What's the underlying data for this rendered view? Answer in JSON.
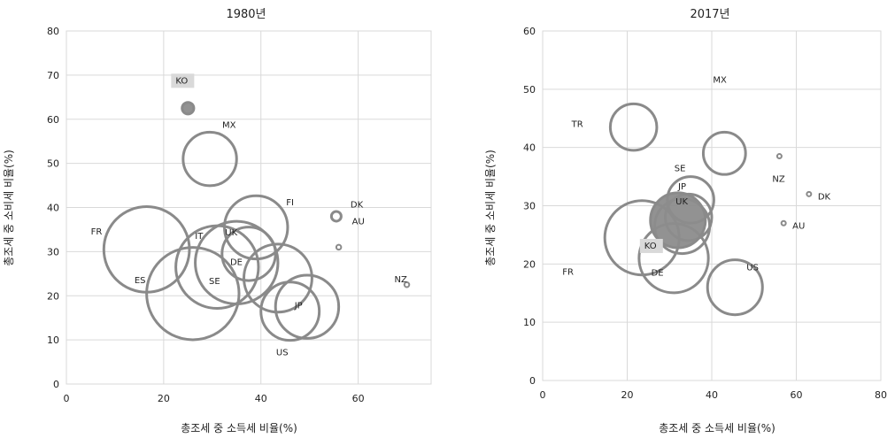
{
  "chart_data": [
    {
      "type": "scatter",
      "title": "1980년",
      "xlabel": "총조세 중 소득세 비율(%)",
      "ylabel": "총조세 중 소비세 비율(%)",
      "xlim": [
        0,
        75
      ],
      "ylim": [
        0,
        80
      ],
      "xticks": [
        0,
        20,
        40,
        60
      ],
      "yticks": [
        0,
        10,
        20,
        30,
        40,
        50,
        60,
        70,
        80
      ],
      "grid": true,
      "note": "bubble chart; circle size varies by country",
      "points": [
        {
          "label": "KO",
          "x": 25,
          "y": 62.5,
          "size": 1.2,
          "filled": true,
          "highlight": true
        },
        {
          "label": "MX",
          "x": 29.5,
          "y": 51,
          "size": 5.5
        },
        {
          "label": "FI",
          "x": 39,
          "y": 35.5,
          "size": 6.5
        },
        {
          "label": "UK",
          "x": 35,
          "y": 27.5,
          "size": 8.5
        },
        {
          "label": "IT",
          "x": 31,
          "y": 26.5,
          "size": 8.5
        },
        {
          "label": "FR",
          "x": 16.5,
          "y": 30.5,
          "size": 8.8
        },
        {
          "label": "ES",
          "x": 26,
          "y": 20.5,
          "size": 9.5
        },
        {
          "label": "SE",
          "x": 37.5,
          "y": 29.5,
          "size": 5.5
        },
        {
          "label": "DE",
          "x": 43.5,
          "y": 24,
          "size": 7
        },
        {
          "label": "JP",
          "x": 46,
          "y": 16.5,
          "size": 6
        },
        {
          "label": "US",
          "x": 49.5,
          "y": 17.5,
          "size": 6.5
        },
        {
          "label": "DK",
          "x": 55.5,
          "y": 38,
          "size": 1
        },
        {
          "label": "AU",
          "x": 56,
          "y": 31,
          "size": 0.5
        },
        {
          "label": "NZ",
          "x": 70,
          "y": 22.5,
          "size": 0.5
        }
      ]
    },
    {
      "type": "scatter",
      "title": "2017년",
      "xlabel": "총조세 중 소득세 비율(%)",
      "ylabel": "총조세 중 소비세 비율(%)",
      "xlim": [
        0,
        80
      ],
      "ylim": [
        0,
        60
      ],
      "xticks": [
        0,
        20,
        40,
        60,
        80
      ],
      "yticks": [
        0,
        10,
        20,
        30,
        40,
        50,
        60
      ],
      "grid": true,
      "note": "bubble chart; circle size varies by country",
      "points": [
        {
          "label": "TR",
          "x": 21.5,
          "y": 43.5,
          "size": 5.5
        },
        {
          "label": "MX",
          "x": 43,
          "y": 39,
          "size": 5
        },
        {
          "label": "UK",
          "x": 35,
          "y": 31,
          "size": 5.5
        },
        {
          "label": "KO",
          "x": 32,
          "y": 27.5,
          "size": 6.5,
          "filled": true,
          "highlight": true
        },
        {
          "label": "SE",
          "x": 34.5,
          "y": 28,
          "size": 5.5
        },
        {
          "label": "FR",
          "x": 23.5,
          "y": 24.5,
          "size": 8.8
        },
        {
          "label": "DE",
          "x": 33,
          "y": 26.5,
          "size": 6.5
        },
        {
          "label": "JP",
          "x": 31,
          "y": 21,
          "size": 8.2
        },
        {
          "label": "US",
          "x": 45.5,
          "y": 16,
          "size": 6.5
        },
        {
          "label": "NZ",
          "x": 56,
          "y": 38.5,
          "size": 0.5
        },
        {
          "label": "DK",
          "x": 63,
          "y": 32,
          "size": 0.5
        },
        {
          "label": "AU",
          "x": 57,
          "y": 27,
          "size": 0.5
        }
      ]
    }
  ]
}
